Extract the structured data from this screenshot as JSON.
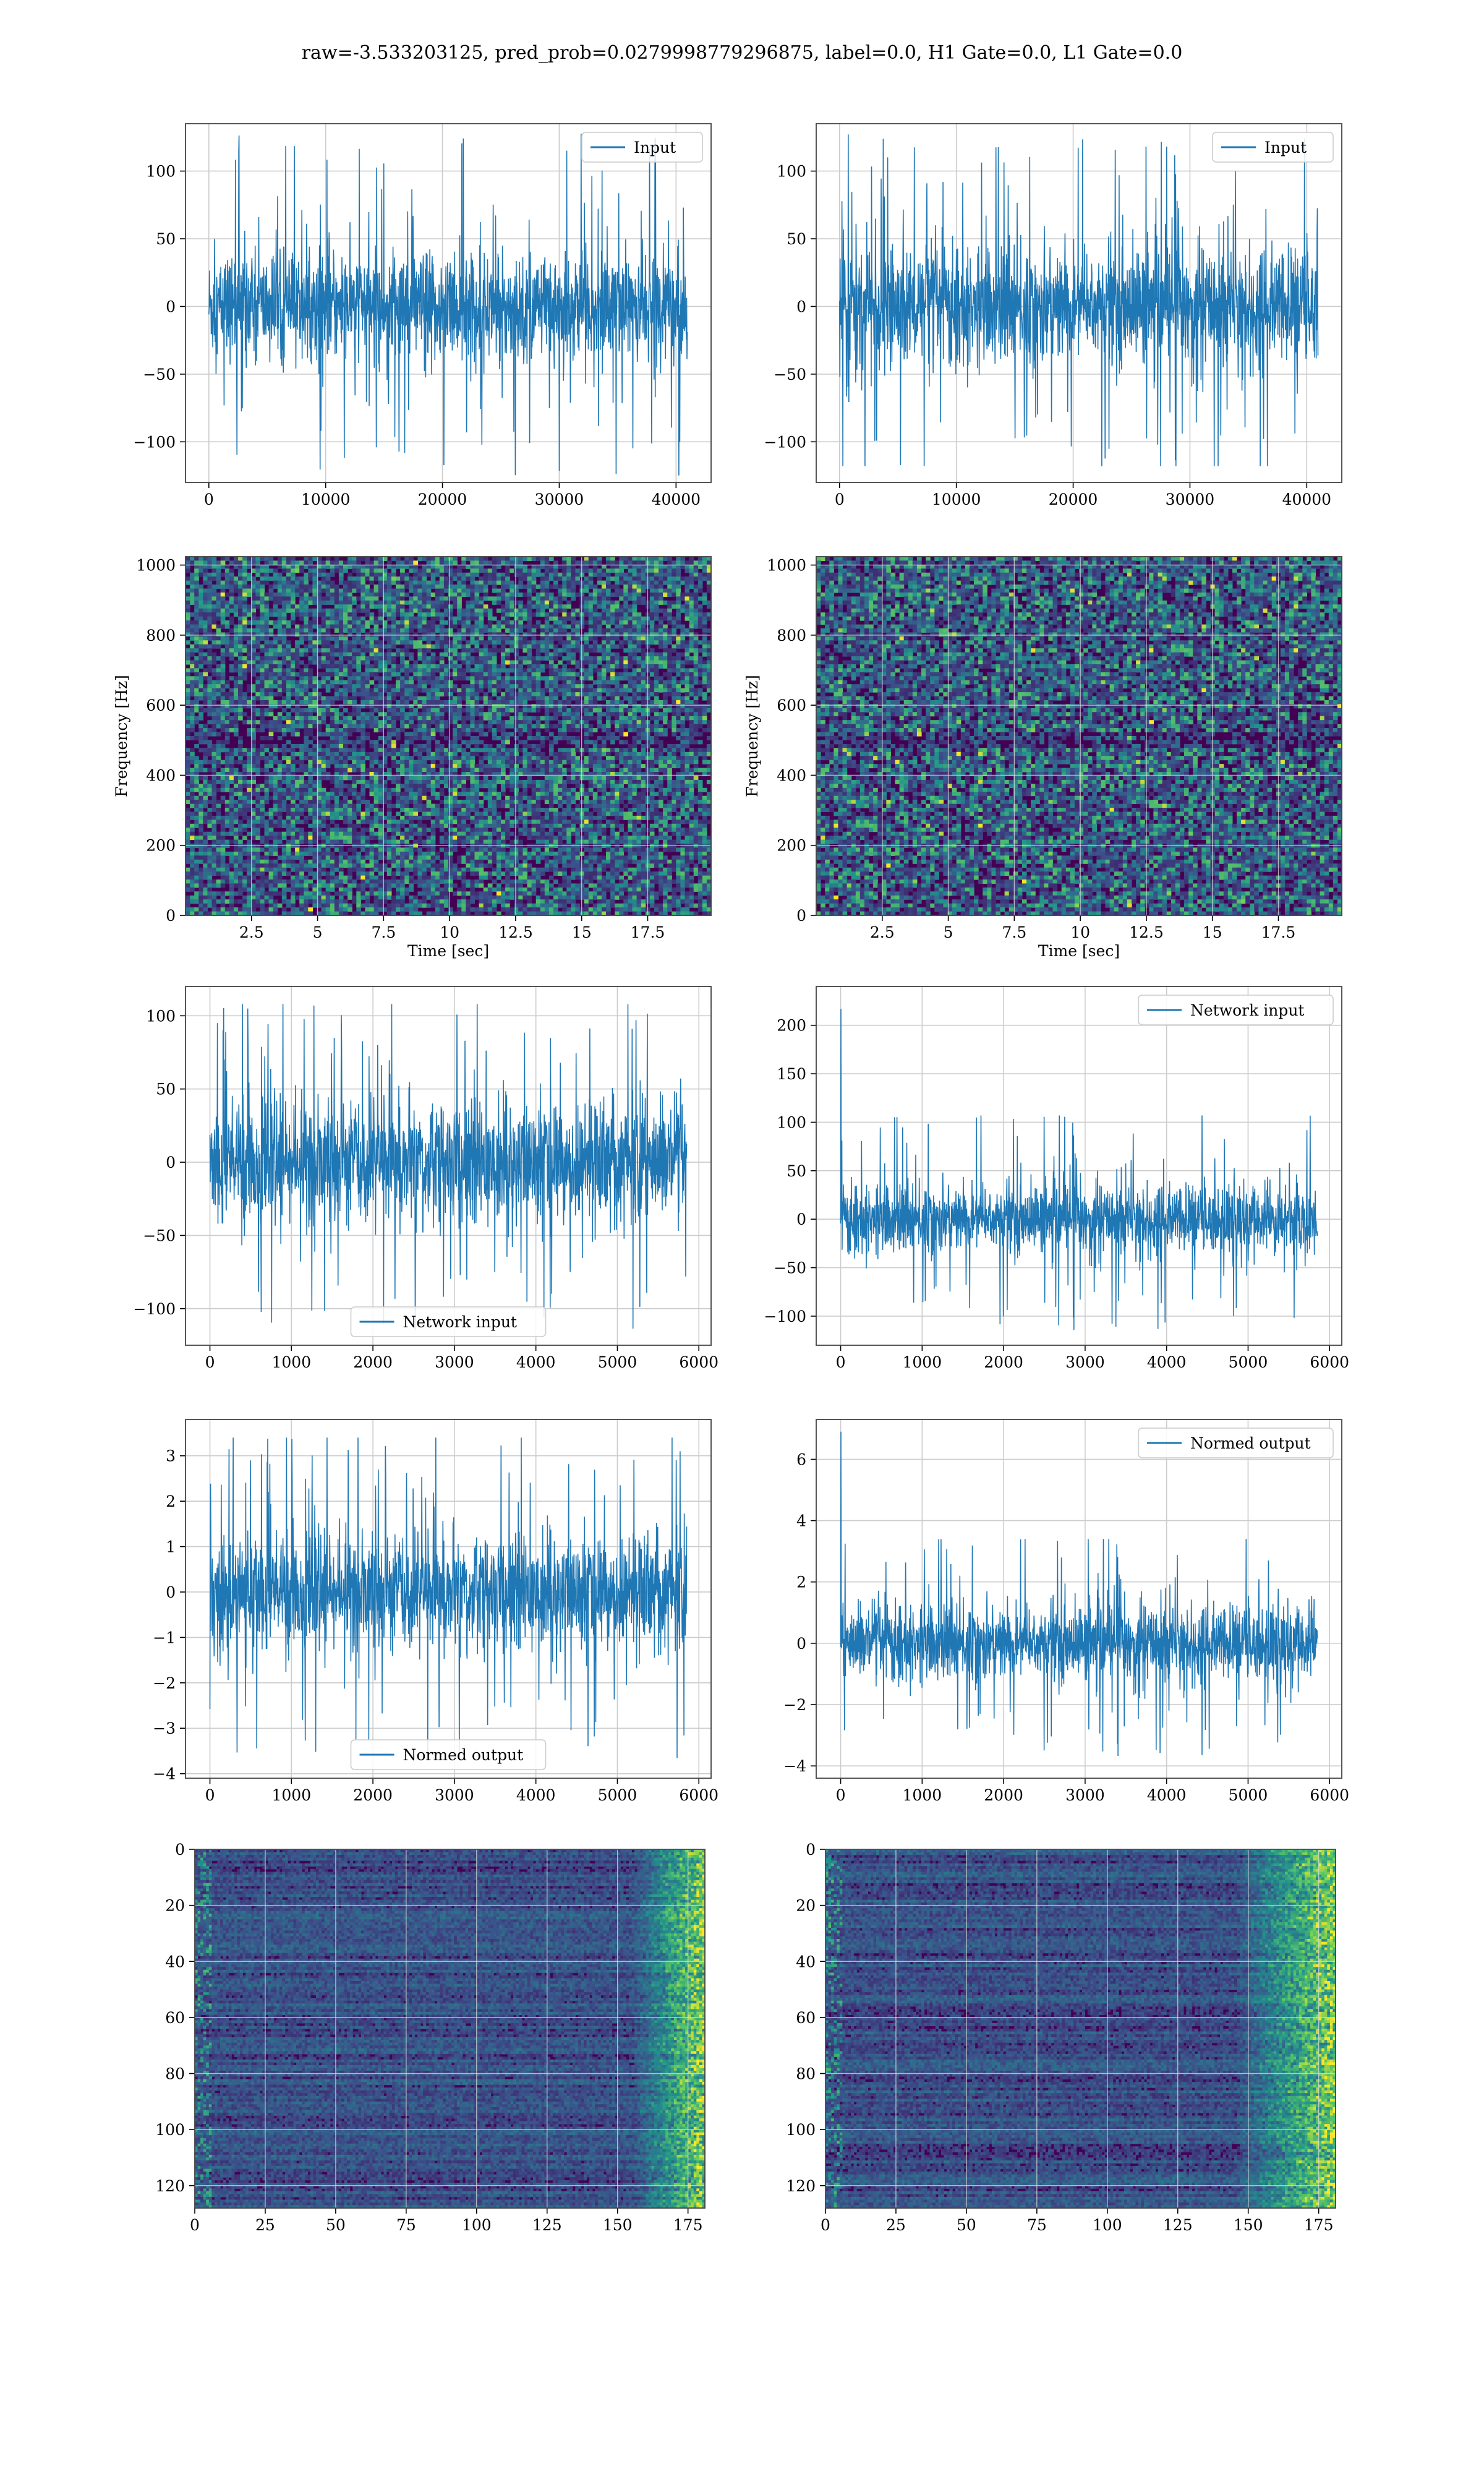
{
  "suptitle": "raw=-3.533203125, pred_prob=0.0279998779296875, label=0.0, H1 Gate=0.0, L1 Gate=0.0",
  "colors": {
    "line": "#1f77b4",
    "grid": "#cccccc",
    "frame": "#444444",
    "heat_low": "#440154",
    "heat_mid1": "#3b528b",
    "heat_mid2": "#21918c",
    "heat_mid3": "#5ec962",
    "heat_high": "#fde725"
  },
  "chart_data": [
    {
      "id": "p1",
      "type": "line",
      "title": "",
      "xlabel": "",
      "ylabel": "",
      "xlim": [
        -2000,
        43000
      ],
      "ylim": [
        -130,
        135
      ],
      "xticks": [
        0,
        10000,
        20000,
        30000,
        40000
      ],
      "yticks": [
        -100,
        -50,
        0,
        50,
        100
      ],
      "legend": {
        "label": "Input",
        "loc": "upper right"
      },
      "series": [
        {
          "name": "Input",
          "x_range": [
            0,
            40960
          ],
          "envelope": {
            "core": 38,
            "peak_max": 128,
            "peak_min": -125
          }
        }
      ]
    },
    {
      "id": "p2",
      "type": "line",
      "title": "",
      "xlabel": "",
      "ylabel": "",
      "xlim": [
        -2000,
        43000
      ],
      "ylim": [
        -130,
        135
      ],
      "xticks": [
        0,
        10000,
        20000,
        30000,
        40000
      ],
      "yticks": [
        -100,
        -50,
        0,
        50,
        100
      ],
      "legend": {
        "label": "Input",
        "loc": "upper right"
      },
      "series": [
        {
          "name": "Input",
          "x_range": [
            0,
            40960
          ],
          "envelope": {
            "core": 42,
            "peak_max": 128,
            "peak_min": -118
          }
        }
      ]
    },
    {
      "id": "p3",
      "type": "heatmap",
      "title": "",
      "xlabel": "Time [sec]",
      "ylabel": "Frequency [Hz]",
      "xlim": [
        0,
        19.9
      ],
      "ylim": [
        0,
        1024
      ],
      "xticks": [
        2.5,
        5.0,
        7.5,
        10.0,
        12.5,
        15.0,
        17.5
      ],
      "yticks": [
        0,
        200,
        400,
        600,
        800,
        1000
      ],
      "grid": true,
      "dark_band_hz": 500
    },
    {
      "id": "p4",
      "type": "heatmap",
      "title": "",
      "xlabel": "Time [sec]",
      "ylabel": "Frequency [Hz]",
      "xlim": [
        0,
        19.9
      ],
      "ylim": [
        0,
        1024
      ],
      "xticks": [
        2.5,
        5.0,
        7.5,
        10.0,
        12.5,
        15.0,
        17.5
      ],
      "yticks": [
        0,
        200,
        400,
        600,
        800,
        1000
      ],
      "grid": true,
      "dark_band_hz": 500
    },
    {
      "id": "p5",
      "type": "line",
      "title": "",
      "xlabel": "",
      "ylabel": "",
      "xlim": [
        -300,
        6150
      ],
      "ylim": [
        -125,
        120
      ],
      "xticks": [
        0,
        1000,
        2000,
        3000,
        4000,
        5000,
        6000
      ],
      "yticks": [
        -100,
        -50,
        0,
        50,
        100
      ],
      "legend": {
        "label": "Network input",
        "loc": "lower center"
      },
      "series": [
        {
          "name": "Network input",
          "x_range": [
            0,
            5850
          ],
          "envelope": {
            "core": 40,
            "peak_max": 108,
            "peak_min": -115
          }
        }
      ]
    },
    {
      "id": "p6",
      "type": "line",
      "title": "",
      "xlabel": "",
      "ylabel": "",
      "xlim": [
        -300,
        6150
      ],
      "ylim": [
        -130,
        240
      ],
      "xticks": [
        0,
        1000,
        2000,
        3000,
        4000,
        5000,
        6000
      ],
      "yticks": [
        -100,
        -50,
        0,
        50,
        100,
        150,
        200
      ],
      "legend": {
        "label": "Network input",
        "loc": "upper right"
      },
      "series": [
        {
          "name": "Network input",
          "x_range": [
            0,
            5850
          ],
          "envelope": {
            "core": 34,
            "peak_max": 107,
            "peak_min": -115,
            "spike_at_start": 217
          }
        }
      ]
    },
    {
      "id": "p7",
      "type": "line",
      "title": "",
      "xlabel": "",
      "ylabel": "",
      "xlim": [
        -300,
        6150
      ],
      "ylim": [
        -4.1,
        3.8
      ],
      "xticks": [
        0,
        1000,
        2000,
        3000,
        4000,
        5000,
        6000
      ],
      "yticks": [
        -4,
        -3,
        -2,
        -1,
        0,
        1,
        2,
        3
      ],
      "legend": {
        "label": "Normed output",
        "loc": "lower center"
      },
      "series": [
        {
          "name": "Normed output",
          "x_range": [
            0,
            5850
          ],
          "envelope": {
            "core": 1.2,
            "peak_max": 3.4,
            "peak_min": -3.7
          }
        }
      ]
    },
    {
      "id": "p8",
      "type": "line",
      "title": "",
      "xlabel": "",
      "ylabel": "",
      "xlim": [
        -300,
        6150
      ],
      "ylim": [
        -4.4,
        7.3
      ],
      "xticks": [
        0,
        1000,
        2000,
        3000,
        4000,
        5000,
        6000
      ],
      "yticks": [
        -4,
        -2,
        0,
        2,
        4,
        6
      ],
      "legend": {
        "label": "Normed output",
        "loc": "upper right"
      },
      "series": [
        {
          "name": "Normed output",
          "x_range": [
            0,
            5850
          ],
          "envelope": {
            "core": 1.2,
            "peak_max": 3.4,
            "peak_min": -3.7,
            "spike_at_start": 6.9
          }
        }
      ]
    },
    {
      "id": "p9",
      "type": "heatmap",
      "title": "",
      "xlabel": "",
      "ylabel": "",
      "xlim": [
        0,
        181
      ],
      "ylim": [
        128,
        0
      ],
      "xticks": [
        0,
        25,
        50,
        75,
        100,
        125,
        150,
        175
      ],
      "yticks": [
        0,
        20,
        40,
        60,
        80,
        100,
        120
      ],
      "grid": true,
      "rows": 128,
      "cols": 181,
      "hot_region_from_col": 155
    },
    {
      "id": "p10",
      "type": "heatmap",
      "title": "",
      "xlabel": "",
      "ylabel": "",
      "xlim": [
        0,
        181
      ],
      "ylim": [
        128,
        0
      ],
      "xticks": [
        0,
        25,
        50,
        75,
        100,
        125,
        150,
        175
      ],
      "yticks": [
        0,
        20,
        40,
        60,
        80,
        100,
        120
      ],
      "grid": true,
      "rows": 128,
      "cols": 181,
      "hot_region_from_col": 145
    }
  ]
}
